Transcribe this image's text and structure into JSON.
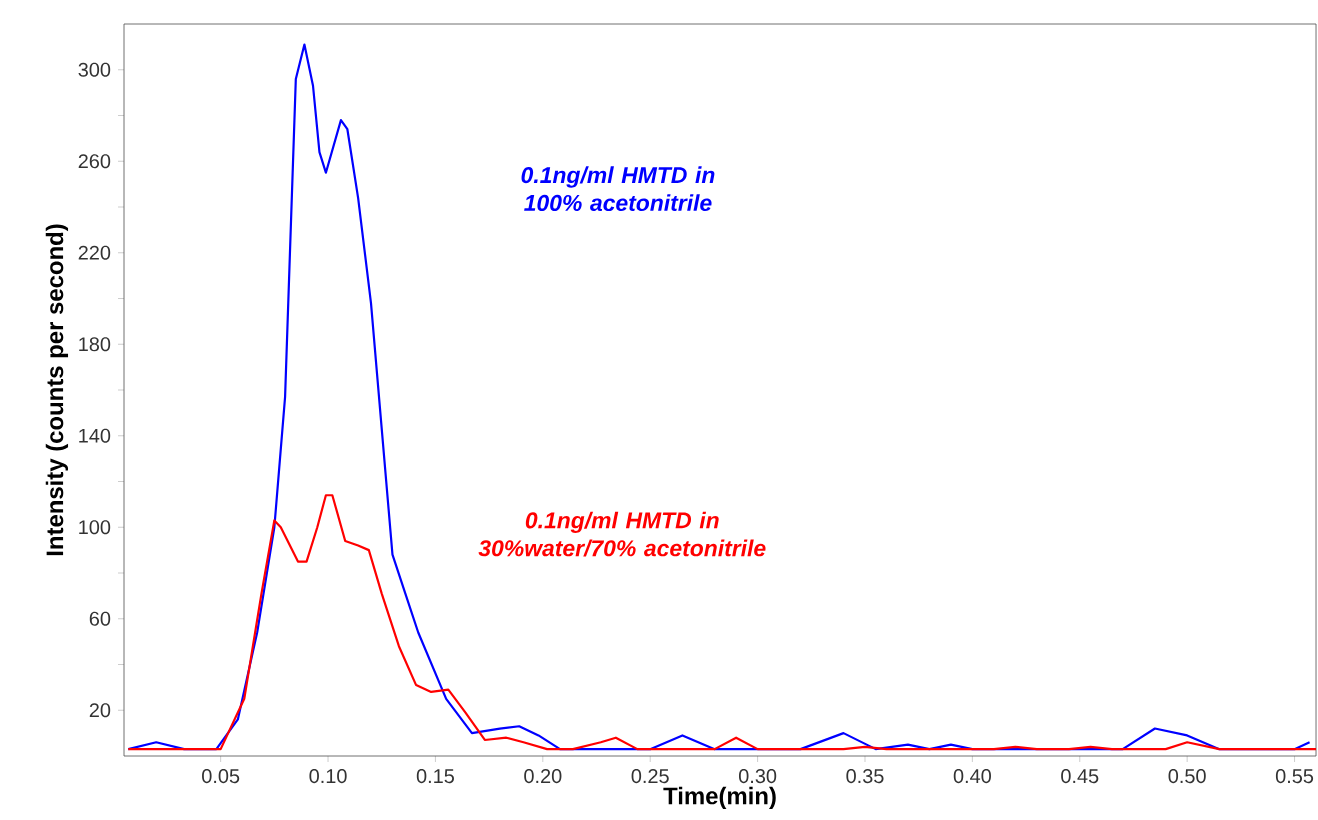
{
  "chart_data": {
    "type": "line",
    "xlabel": "Time(min)",
    "ylabel": "Intensity (counts per second)",
    "xlim": [
      0.005,
      0.56
    ],
    "ylim": [
      0,
      320
    ],
    "xticks": [
      0.05,
      {
        "value": 0.1,
        "label": "0.10"
      },
      0.15,
      {
        "value": 0.2,
        "label": "0.20"
      },
      0.25,
      {
        "value": 0.3,
        "label": "0.30"
      },
      0.35,
      {
        "value": 0.4,
        "label": "0.40"
      },
      0.45,
      {
        "value": 0.5,
        "label": "0.50"
      },
      0.55
    ],
    "yticks": [
      20,
      {
        "value": 40,
        "label": null
      },
      60,
      {
        "value": 80,
        "label": null
      },
      100,
      {
        "value": 120,
        "label": null
      },
      140,
      {
        "value": 160,
        "label": null
      },
      180,
      {
        "value": 200,
        "label": null
      },
      220,
      {
        "value": 240,
        "label": null
      },
      260,
      {
        "value": 280,
        "label": null
      },
      300
    ],
    "grid": false,
    "legend": false,
    "marker": "none",
    "line_style": "solid",
    "series": [
      {
        "name": "0.1ng/ml HMTD in 100% acetonitrile",
        "color": "#0000ff",
        "x": [
          0.007,
          0.02,
          0.033,
          0.048,
          0.058,
          0.067,
          0.075,
          0.08,
          0.085,
          0.089,
          0.093,
          0.096,
          0.099,
          0.106,
          0.109,
          0.114,
          0.12,
          0.125,
          0.13,
          0.136,
          0.142,
          0.155,
          0.167,
          0.18,
          0.189,
          0.198,
          0.208,
          0.25,
          0.265,
          0.28,
          0.32,
          0.34,
          0.355,
          0.37,
          0.38,
          0.39,
          0.4,
          0.47,
          0.485,
          0.5,
          0.515,
          0.55,
          0.557
        ],
        "values": [
          3,
          6,
          3,
          3,
          16,
          54,
          100,
          157,
          296,
          311,
          293,
          264,
          255,
          278,
          274,
          244,
          198,
          143,
          88,
          71,
          54,
          25,
          10,
          12,
          13,
          9,
          3,
          3,
          9,
          3,
          3,
          10,
          3,
          5,
          3,
          5,
          3,
          3,
          12,
          9,
          3,
          3,
          6
        ]
      },
      {
        "name": "0.1ng/ml HMTD in 30%water/70% acetonitrile",
        "color": "#ff0000",
        "x": [
          0.007,
          0.05,
          0.061,
          0.069,
          0.075,
          0.078,
          0.086,
          0.09,
          0.095,
          0.099,
          0.102,
          0.108,
          0.114,
          0.119,
          0.125,
          0.133,
          0.141,
          0.148,
          0.156,
          0.164,
          0.173,
          0.183,
          0.191,
          0.202,
          0.214,
          0.227,
          0.234,
          0.244,
          0.28,
          0.29,
          0.3,
          0.34,
          0.35,
          0.36,
          0.41,
          0.42,
          0.43,
          0.445,
          0.455,
          0.465,
          0.49,
          0.5,
          0.515,
          0.56
        ],
        "values": [
          3,
          3,
          25,
          71,
          103,
          100,
          85,
          85,
          100,
          114,
          114,
          94,
          92,
          90,
          71,
          48,
          31,
          28,
          29,
          19,
          7,
          8,
          6,
          3,
          3,
          6,
          8,
          3,
          3,
          8,
          3,
          3,
          4,
          3,
          3,
          4,
          3,
          3,
          4,
          3,
          3,
          6,
          3,
          3
        ]
      }
    ]
  }
}
